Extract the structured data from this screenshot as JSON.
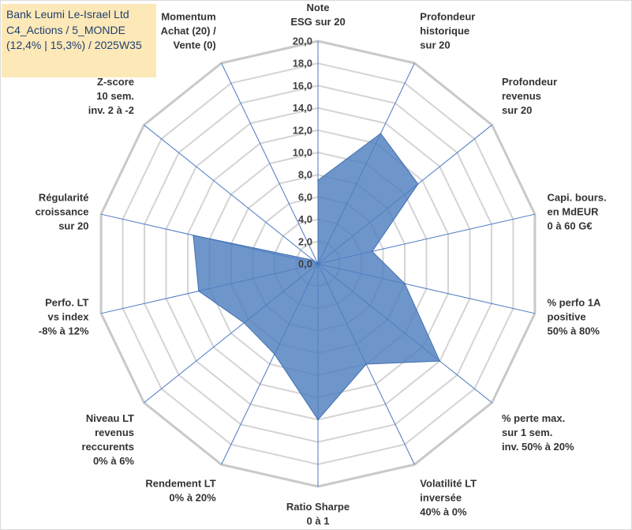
{
  "title_lines": [
    "Bank Leumi Le-Israel Ltd",
    "C4_Actions / 5_MONDE",
    "(12,4% | 15,3%) / 2025W35"
  ],
  "chart_data": {
    "type": "radar",
    "rlim": [
      0,
      20
    ],
    "r_ticks": [
      "0,0",
      "2,0",
      "4,0",
      "6,0",
      "8,0",
      "10,0",
      "12,0",
      "14,0",
      "16,0",
      "18,0",
      "20,0"
    ],
    "grid": true,
    "fill_color": "#4f7fbf",
    "categories": [
      [
        "Note",
        "ESG sur 20"
      ],
      [
        "Profondeur",
        "historique",
        "sur 20"
      ],
      [
        "Profondeur",
        "revenus",
        "sur 20"
      ],
      [
        "Capi. bours.",
        "en MdEUR",
        "0 à 60 G€"
      ],
      [
        "% perfo 1A",
        "positive",
        "50% à 80%"
      ],
      [
        "% perte max.",
        "sur 1 sem.",
        "inv. 50% à 20%"
      ],
      [
        "Volatilité LT",
        "inversée",
        "40% à 0%"
      ],
      [
        "Ratio Sharpe",
        "0 à 1"
      ],
      [
        "Rendement LT",
        "0% à 20%"
      ],
      [
        "Niveau LT",
        "revenus",
        "reccurents",
        "0% à 6%"
      ],
      [
        "Perfo. LT",
        "vs index",
        "-8% à 12%"
      ],
      [
        "Régularité",
        "croissance",
        "sur 20"
      ],
      [
        "Z-score",
        "10 sem.",
        "inv. 2 à -2"
      ],
      [
        "Momentum",
        "Achat (20) /",
        "Vente (0)"
      ]
    ],
    "values": [
      7.5,
      13.0,
      11.5,
      5.0,
      8.0,
      14.0,
      10.0,
      14.0,
      9.0,
      8.5,
      11.0,
      11.5,
      0.5,
      0.0
    ]
  }
}
